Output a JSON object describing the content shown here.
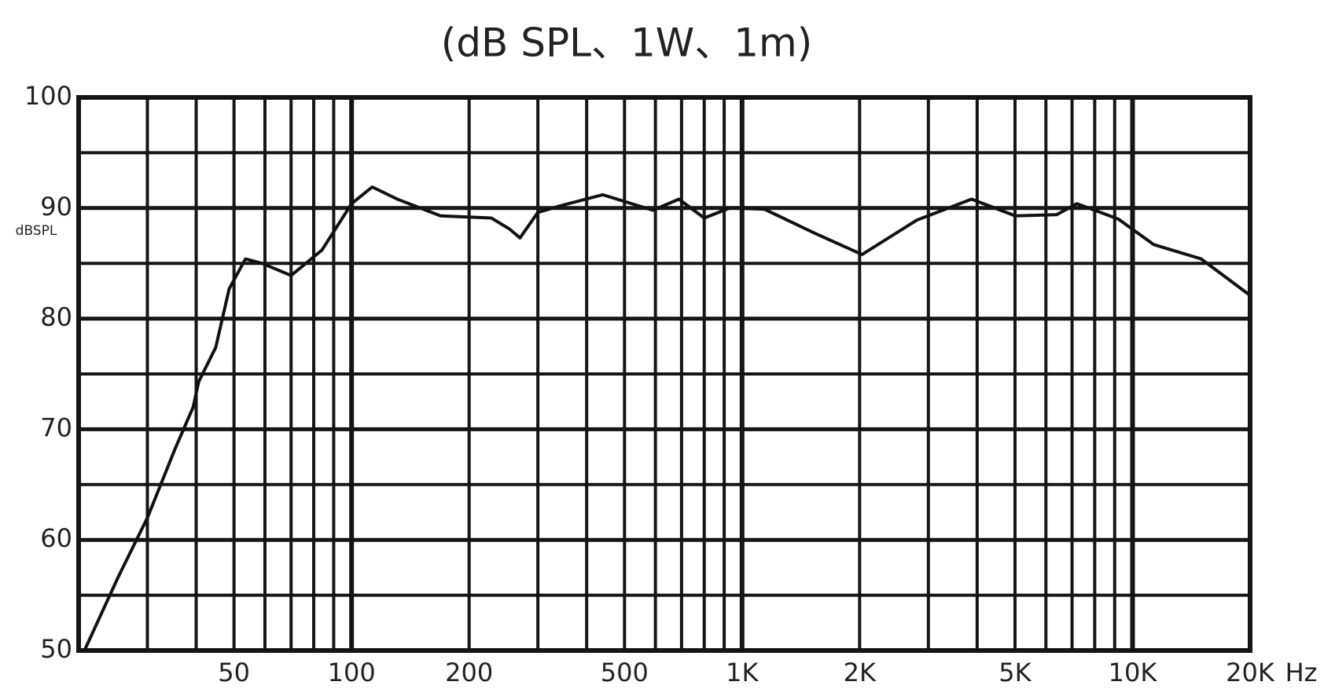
{
  "chart_data": {
    "type": "line",
    "title": "(dB SPL、1W、1m)",
    "y_label": "dBSPL",
    "x_label": "Hz",
    "log_x": true,
    "grid": true,
    "color": "#111111",
    "xlim": [
      20,
      20000
    ],
    "ylim": [
      50,
      100
    ],
    "xticks": [
      50,
      100,
      200,
      500,
      {
        "value": 1000,
        "label": "1K"
      },
      {
        "value": 2000,
        "label": "2K"
      },
      {
        "value": 5000,
        "label": "5K"
      },
      {
        "value": 10000,
        "label": "10K"
      },
      {
        "value": 20000,
        "label": "20K"
      }
    ],
    "x_gridlines": [
      30,
      40,
      60,
      70,
      80,
      90,
      300,
      400,
      600,
      700,
      800,
      900,
      3000,
      4000,
      6000,
      7000,
      8000,
      9000
    ],
    "yticks": [
      50,
      60,
      70,
      80,
      90,
      100
    ],
    "y_gridlines": [
      55,
      65,
      75,
      85,
      95
    ],
    "x": [
      20.7,
      25.3,
      30,
      35.3,
      39.3,
      40.6,
      44.9,
      48.6,
      53.5,
      59,
      70,
      84,
      100,
      113,
      131,
      169,
      228,
      254,
      270,
      300,
      342,
      440,
      591,
      689,
      800,
      930,
      1140,
      1540,
      2030,
      2800,
      3870,
      5010,
      6390,
      7200,
      9200,
      11330,
      15000,
      20000
    ],
    "values": [
      50,
      56.7,
      62,
      68.2,
      72,
      74.3,
      77.4,
      82.7,
      85.4,
      85,
      83.9,
      86.2,
      90.4,
      91.9,
      90.8,
      89.3,
      89.1,
      88.1,
      87.3,
      89.6,
      90.2,
      91.2,
      89.8,
      90.8,
      89.1,
      90,
      89.9,
      87.7,
      85.8,
      88.9,
      90.8,
      89.3,
      89.4,
      90.4,
      89,
      86.7,
      85.4,
      82.1
    ]
  }
}
